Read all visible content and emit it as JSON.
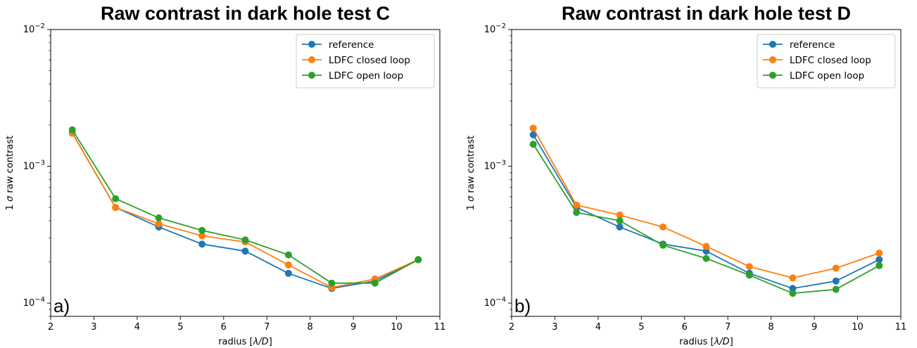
{
  "colors": {
    "reference": "#1f77b4",
    "closed": "#ff7f0e",
    "open": "#2ca02c"
  },
  "chart_data": [
    {
      "type": "line",
      "title": "Raw contrast in dark hole test C",
      "panel_label": "a)",
      "xlabel_pre": "radius [",
      "xlabel_math": "λ/D",
      "xlabel_post": "]",
      "ylabel_pre": "1 ",
      "ylabel_math": "σ",
      "ylabel_post": " raw contrast",
      "xlim": [
        2,
        11
      ],
      "ylim": [
        8e-05,
        0.01
      ],
      "yscale": "log",
      "xticks": [
        2,
        3,
        4,
        5,
        6,
        7,
        8,
        9,
        10,
        11
      ],
      "yticks": [
        {
          "value": 0.0001,
          "base": "10",
          "exp": "−4"
        },
        {
          "value": 0.001,
          "base": "10",
          "exp": "−3"
        },
        {
          "value": 0.01,
          "base": "10",
          "exp": "−2"
        }
      ],
      "legend_position": "upper-right",
      "x": [
        2.5,
        3.5,
        4.5,
        5.5,
        6.5,
        7.5,
        8.5,
        9.5,
        10.5
      ],
      "series": [
        {
          "name": "reference",
          "color": "#1f77b4",
          "values": [
            0.00175,
            0.0005,
            0.00036,
            0.00027,
            0.00024,
            0.000165,
            0.000128,
            0.000145,
            0.000208
          ]
        },
        {
          "name": "LDFC closed loop",
          "color": "#ff7f0e",
          "values": [
            0.00175,
            0.0005,
            0.00038,
            0.00031,
            0.00028,
            0.00019,
            0.00013,
            0.00015,
            0.000208
          ]
        },
        {
          "name": "LDFC open loop",
          "color": "#2ca02c",
          "values": [
            0.00185,
            0.00058,
            0.00042,
            0.00034,
            0.00029,
            0.000225,
            0.00014,
            0.00014,
            0.000208
          ]
        }
      ]
    },
    {
      "type": "line",
      "title": "Raw contrast in dark hole test D",
      "panel_label": "b)",
      "xlabel_pre": "radius [",
      "xlabel_math": "λ/D",
      "xlabel_post": "]",
      "ylabel_pre": "1 ",
      "ylabel_math": "σ",
      "ylabel_post": " raw contrast",
      "xlim": [
        2,
        11
      ],
      "ylim": [
        8e-05,
        0.01
      ],
      "yscale": "log",
      "xticks": [
        2,
        3,
        4,
        5,
        6,
        7,
        8,
        9,
        10,
        11
      ],
      "yticks": [
        {
          "value": 0.0001,
          "base": "10",
          "exp": "−4"
        },
        {
          "value": 0.001,
          "base": "10",
          "exp": "−3"
        },
        {
          "value": 0.01,
          "base": "10",
          "exp": "−2"
        }
      ],
      "legend_position": "upper-right",
      "x": [
        2.5,
        3.5,
        4.5,
        5.5,
        6.5,
        7.5,
        8.5,
        9.5,
        10.5
      ],
      "series": [
        {
          "name": "reference",
          "color": "#1f77b4",
          "values": [
            0.0017,
            0.0005,
            0.00036,
            0.00027,
            0.00024,
            0.000165,
            0.000128,
            0.000145,
            0.000208
          ]
        },
        {
          "name": "LDFC closed loop",
          "color": "#ff7f0e",
          "values": [
            0.0019,
            0.00052,
            0.00044,
            0.00036,
            0.00026,
            0.000185,
            0.000153,
            0.00018,
            0.000232
          ]
        },
        {
          "name": "LDFC open loop",
          "color": "#2ca02c",
          "values": [
            0.00145,
            0.00046,
            0.0004,
            0.000265,
            0.000212,
            0.00016,
            0.000118,
            0.000126,
            0.000188
          ]
        }
      ]
    }
  ]
}
